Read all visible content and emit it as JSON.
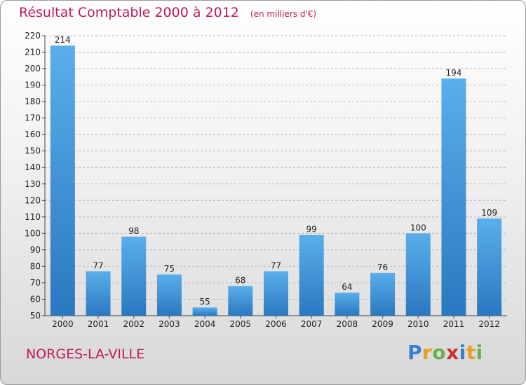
{
  "chart_data": {
    "type": "bar",
    "title": "Résultat Comptable 2000 à 2012",
    "subtitle": "(en milliers d'€)",
    "categories": [
      "2000",
      "2001",
      "2002",
      "2003",
      "2004",
      "2005",
      "2006",
      "2007",
      "2008",
      "2009",
      "2010",
      "2011",
      "2012"
    ],
    "values": [
      214,
      77,
      98,
      75,
      55,
      68,
      77,
      99,
      64,
      76,
      100,
      194,
      109
    ],
    "ylim": [
      50,
      220
    ],
    "yticks": [
      50,
      60,
      70,
      80,
      90,
      100,
      110,
      120,
      130,
      140,
      150,
      160,
      170,
      180,
      190,
      200,
      210,
      220
    ],
    "grid": true,
    "bar_color": "#3a8fd6",
    "title_color": "#c2185b"
  },
  "location": "NORGES-LA-VILLE",
  "logo": {
    "text": "Proxiti",
    "letters": [
      "P",
      "r",
      "o",
      "x",
      "i",
      "t",
      "i"
    ],
    "colors": [
      "#3a7fd0",
      "#e8a020",
      "#6ab04c",
      "#d03030",
      "#3a7fd0",
      "#e8a020",
      "#6ab04c"
    ]
  }
}
